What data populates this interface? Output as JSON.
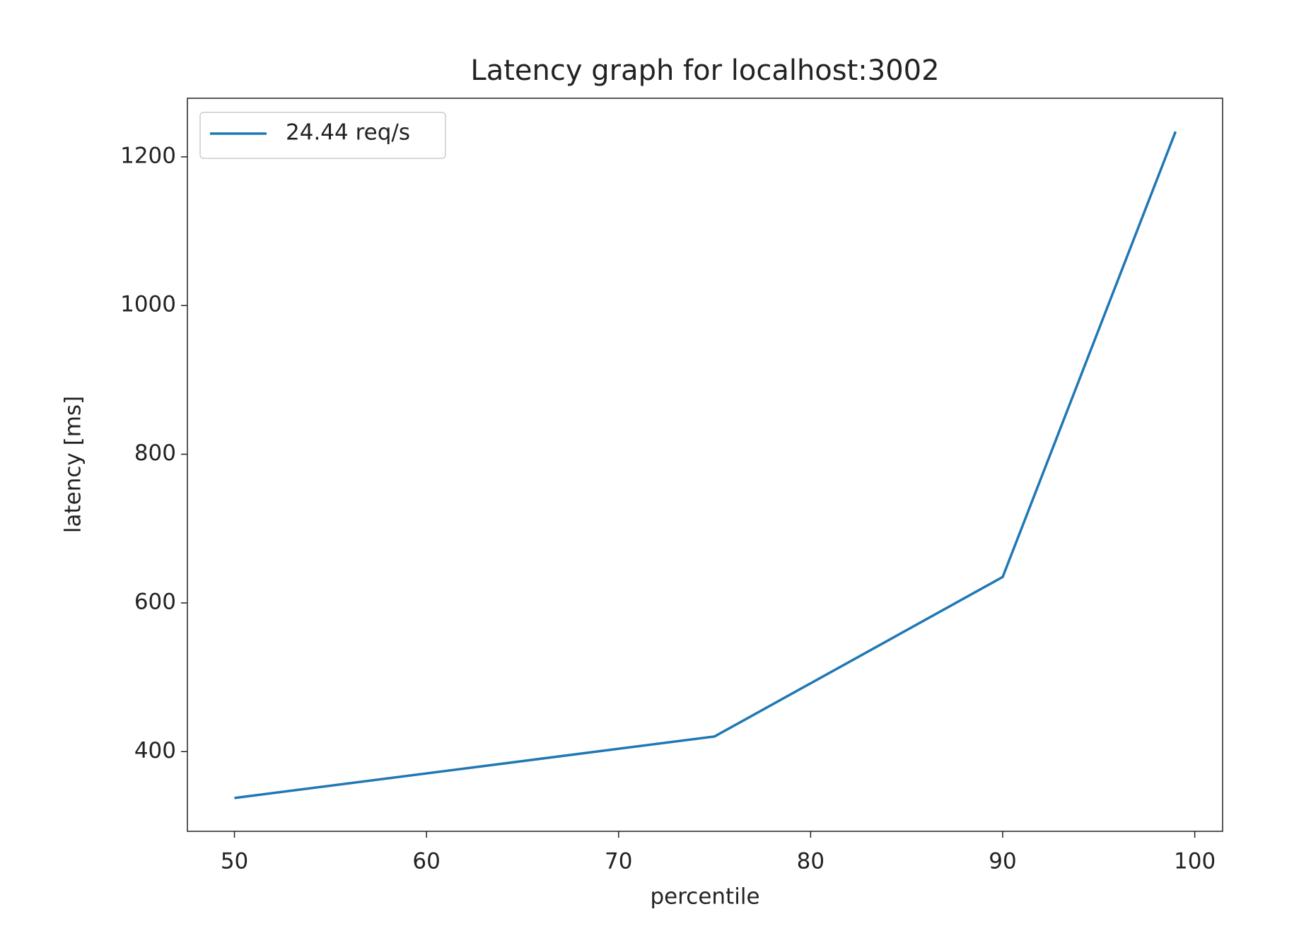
{
  "chart_data": {
    "type": "line",
    "title": "Latency graph for localhost:3002",
    "x_label": "percentile",
    "y_label": "latency [ms]",
    "x": [
      50,
      75,
      90,
      99
    ],
    "series": [
      {
        "name": "24.44 req/s",
        "color": "#1f77b4",
        "values": [
          337.6,
          420.4,
          634.9,
          1234
        ]
      }
    ],
    "xlim": [
      47.55,
      101.45
    ],
    "xticks": [
      50,
      60,
      70,
      80,
      90,
      100
    ],
    "ylim": [
      292.8,
      1278.8
    ],
    "yticks": [
      400,
      600,
      800,
      1000,
      1200
    ],
    "grid": false,
    "legend": "upper left"
  }
}
